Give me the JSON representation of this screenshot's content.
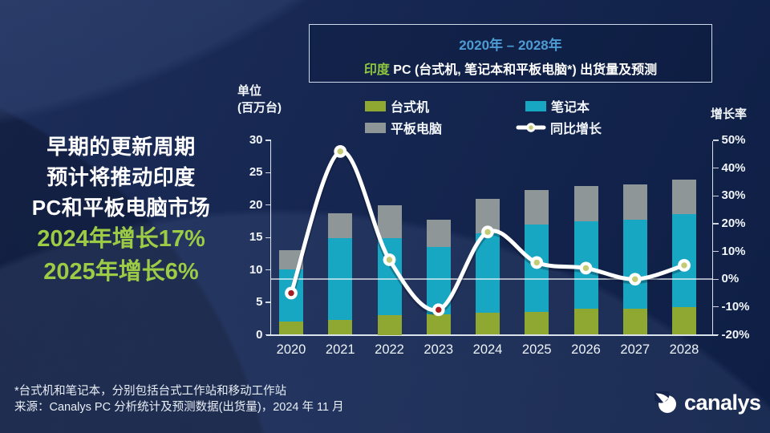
{
  "colors": {
    "accent_blue": "#4E9BD4",
    "accent_green": "#9CCB45",
    "title_green": "#8FC63F",
    "desktop_green": "#8FA832",
    "notebook_teal": "#18A7C2",
    "tablet_gray": "#8F9698",
    "line_white": "#FFFFFF",
    "marker_olive": "#C3CC74",
    "marker_red": "#A31D22"
  },
  "headline": {
    "lines": [
      "早期的更新周期",
      "预计将推动印度",
      "PC和平板电脑市场"
    ],
    "highlights": [
      "2024年增长17%",
      "2025年增长6%"
    ]
  },
  "title_box": {
    "period": "2020年 – 2028年",
    "title_prefix": "印度",
    "title_rest": " PC (台式机, 笔记本和平板电脑*) 出货量及预测"
  },
  "axis_labels": {
    "unit_line1": "单位",
    "unit_line2": "(百万台)",
    "growth": "增长率"
  },
  "legend": {
    "items": [
      {
        "label": "台式机",
        "kind": "swatch",
        "color": "#8FA832"
      },
      {
        "label": "笔记本",
        "kind": "swatch",
        "color": "#18A7C2"
      },
      {
        "label": "平板电脑",
        "kind": "swatch",
        "color": "#8F9698"
      },
      {
        "label": "同比增长",
        "kind": "line",
        "color": "#FFFFFF",
        "marker": "#C3CC74"
      }
    ]
  },
  "chart_data": {
    "type": "combo_stacked_bar_line",
    "title": "印度 PC (台式机, 笔记本和平板电脑*) 出货量及预测",
    "subtitle": "2020年 – 2028年",
    "unit_label": "单位 (百万台)",
    "categories": [
      "2020",
      "2021",
      "2022",
      "2023",
      "2024",
      "2025",
      "2026",
      "2027",
      "2028"
    ],
    "bar_series": [
      {
        "name": "台式机",
        "name_en": "desktop",
        "color": "#8FA832",
        "values": [
          2.0,
          2.3,
          3.0,
          3.2,
          3.4,
          3.5,
          4.0,
          4.0,
          4.3
        ]
      },
      {
        "name": "笔记本",
        "name_en": "notebook",
        "color": "#18A7C2",
        "values": [
          8.1,
          12.6,
          11.9,
          10.3,
          12.3,
          13.5,
          13.5,
          13.7,
          14.3
        ]
      },
      {
        "name": "平板电脑",
        "name_en": "tablet",
        "color": "#8F9698",
        "values": [
          2.9,
          3.8,
          5.1,
          4.3,
          5.3,
          5.3,
          5.4,
          5.5,
          5.3
        ]
      }
    ],
    "line_series": {
      "name": "同比增长",
      "unit": "%",
      "values": [
        -5,
        46,
        7,
        -11,
        17,
        6,
        4,
        0,
        5
      ],
      "color": "#FFFFFF",
      "marker_fill_positive": "#C3CC74",
      "marker_fill_negative": "#A31D22"
    },
    "left_axis": {
      "min": 0,
      "max": 30,
      "ticks": [
        30,
        25,
        20,
        15,
        10,
        5,
        0
      ]
    },
    "right_axis": {
      "label": "增长率",
      "min": -20,
      "max": 50,
      "tick_labels": [
        "50%",
        "40%",
        "30%",
        "20%",
        "10%",
        "0%",
        "-10%",
        "-20%"
      ],
      "tick_values": [
        50,
        40,
        30,
        20,
        10,
        0,
        -10,
        -20
      ]
    },
    "gridline_at_pct": 0,
    "legend_position": "top",
    "grid": "single horizontal gridline at 0% only"
  },
  "footnote": {
    "line1": "*台式机和笔记本，分别包括台式工作站和移动工作站",
    "line2": "来源：Canalys PC 分析统计及预测数据(出货量)，2024 年 11 月"
  },
  "logo": {
    "text": "canalys"
  }
}
